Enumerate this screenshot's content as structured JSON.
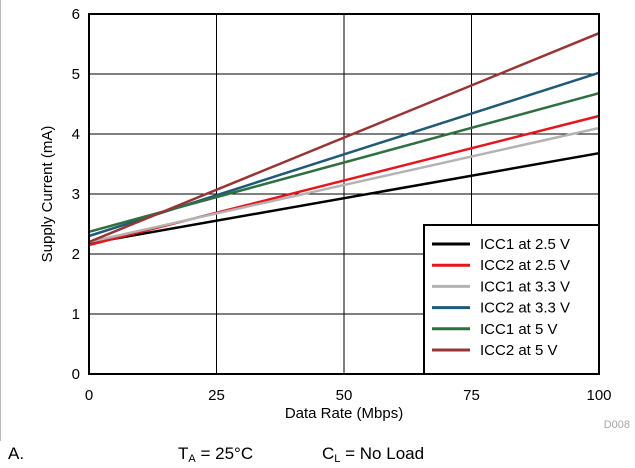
{
  "chart_data": {
    "type": "line",
    "xlabel": "Data Rate (Mbps)",
    "ylabel": "Supply Current (mA)",
    "xlim": [
      0,
      100
    ],
    "ylim": [
      0,
      6
    ],
    "x_ticks": [
      "0",
      "25",
      "50",
      "75",
      "100"
    ],
    "y_ticks": [
      "0",
      "1",
      "2",
      "3",
      "4",
      "5",
      "6"
    ],
    "grid": true,
    "legend_position": "bottom-right",
    "figure_id": "D008",
    "series": [
      {
        "name": "ICC1 at 2.5 V",
        "color": "#000000",
        "x": [
          0,
          100
        ],
        "y": [
          2.18,
          3.68
        ]
      },
      {
        "name": "ICC2 at 2.5 V",
        "color": "#e8141c",
        "x": [
          0,
          100
        ],
        "y": [
          2.15,
          4.3
        ]
      },
      {
        "name": "ICC1 at 3.3 V",
        "color": "#b3b3b3",
        "x": [
          0,
          100
        ],
        "y": [
          2.2,
          4.1
        ]
      },
      {
        "name": "ICC2 at 3.3 V",
        "color": "#1f5a78",
        "x": [
          0,
          100
        ],
        "y": [
          2.3,
          5.02
        ]
      },
      {
        "name": "ICC1 at 5 V",
        "color": "#2e7040",
        "x": [
          0,
          100
        ],
        "y": [
          2.37,
          4.68
        ]
      },
      {
        "name": "ICC2 at 5 V",
        "color": "#9a3434",
        "x": [
          0,
          100
        ],
        "y": [
          2.2,
          5.68
        ]
      }
    ]
  },
  "caption": {
    "label": "A.",
    "ta_symbol": "T",
    "ta_sub": "A",
    "ta_value": " = 25°C",
    "cl_symbol": "C",
    "cl_sub": "L",
    "cl_value": " = No Load"
  }
}
